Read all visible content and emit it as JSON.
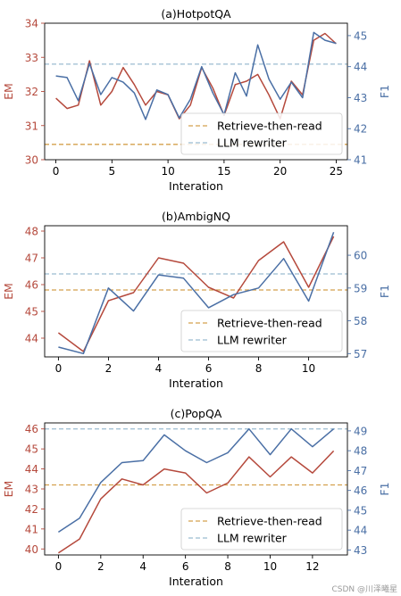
{
  "watermark": "CSDN @川泽曦星",
  "colors": {
    "em": "#b5493c",
    "f1": "#4a6fa5",
    "rtr_baseline": "#d4a04d",
    "llm_baseline": "#9bbcd0",
    "axis": "#000000"
  },
  "chart_data": [
    {
      "type": "line",
      "title": "(a)HotpotQA",
      "xlabel": "Interation",
      "ylabel_left": "EM",
      "ylabel_right": "F1",
      "x": [
        0,
        1,
        2,
        3,
        4,
        5,
        6,
        7,
        8,
        9,
        10,
        11,
        12,
        13,
        14,
        15,
        16,
        17,
        18,
        19,
        20,
        21,
        22,
        23,
        24,
        25
      ],
      "xlim": [
        -1,
        26
      ],
      "xticks": [
        0,
        5,
        10,
        15,
        20,
        25
      ],
      "ylim_left": [
        30,
        34
      ],
      "yticks_left": [
        30,
        31,
        32,
        33,
        34
      ],
      "ylim_right": [
        41,
        45.4
      ],
      "yticks_right": [
        41,
        42,
        43,
        44,
        45
      ],
      "series": [
        {
          "key": "em",
          "axis": "left",
          "values": [
            31.8,
            31.5,
            31.6,
            32.9,
            31.6,
            32.0,
            32.7,
            32.2,
            31.6,
            32.0,
            31.9,
            31.2,
            31.6,
            32.7,
            32.1,
            31.3,
            32.2,
            32.3,
            32.5,
            31.9,
            31.2,
            32.3,
            31.9,
            33.5,
            33.7,
            33.4
          ]
        },
        {
          "key": "f1",
          "axis": "left_alt",
          "values_right_axis": [
            43.7,
            43.65,
            42.9,
            44.1,
            43.1,
            43.65,
            43.5,
            43.15,
            42.3,
            43.25,
            43.1,
            42.35,
            42.95,
            44.0,
            43.15,
            42.45,
            43.8,
            43.05,
            44.7,
            43.6,
            42.95,
            43.5,
            43.0,
            45.1,
            44.85,
            44.75
          ]
        }
      ],
      "baselines": [
        {
          "label": "Retrieve-then-read",
          "axis": "left",
          "value": 30.45
        },
        {
          "label": "LLM rewriter",
          "axis": "left",
          "value": 32.8
        }
      ],
      "legend": "bottom-right"
    },
    {
      "type": "line",
      "title": "(b)AmbigNQ",
      "xlabel": "Interation",
      "ylabel_left": "EM",
      "ylabel_right": "F1",
      "x": [
        0,
        1,
        2,
        3,
        4,
        5,
        6,
        7,
        8,
        9,
        10,
        11
      ],
      "xlim": [
        -0.55,
        11.55
      ],
      "xticks": [
        0,
        2,
        4,
        6,
        8,
        10
      ],
      "ylim_left": [
        43.3,
        48.2
      ],
      "yticks_left": [
        44,
        45,
        46,
        47,
        48
      ],
      "ylim_right": [
        56.9,
        60.9
      ],
      "yticks_right": [
        57,
        58,
        59,
        60
      ],
      "series": [
        {
          "key": "em",
          "axis": "left",
          "values": [
            44.2,
            43.5,
            45.4,
            45.7,
            47.0,
            46.8,
            45.9,
            45.5,
            46.9,
            47.6,
            45.9,
            47.8
          ]
        },
        {
          "key": "f1",
          "axis": "right",
          "values_right_axis": [
            57.2,
            57.0,
            59.0,
            58.3,
            59.4,
            59.3,
            58.4,
            58.8,
            59.0,
            59.9,
            58.6,
            60.7
          ]
        }
      ],
      "baselines": [
        {
          "label": "Retrieve-then-read",
          "axis": "left",
          "value": 45.8
        },
        {
          "label": "LLM rewriter",
          "axis": "left",
          "value": 46.4
        }
      ],
      "legend": "bottom-right"
    },
    {
      "type": "line",
      "title": "(c)PopQA",
      "xlabel": "Interation",
      "ylabel_left": "EM",
      "ylabel_right": "F1",
      "x": [
        0,
        1,
        2,
        3,
        4,
        5,
        6,
        7,
        8,
        9,
        10,
        11,
        12,
        13
      ],
      "xlim": [
        -0.65,
        13.65
      ],
      "xticks": [
        0,
        2,
        4,
        6,
        8,
        10,
        12
      ],
      "ylim_left": [
        39.7,
        46.3
      ],
      "yticks_left": [
        40,
        41,
        42,
        43,
        44,
        45,
        46
      ],
      "ylim_right": [
        42.75,
        49.4
      ],
      "yticks_right": [
        43,
        44,
        45,
        46,
        47,
        48,
        49
      ],
      "series": [
        {
          "key": "em",
          "axis": "left",
          "values": [
            39.8,
            40.5,
            42.5,
            43.5,
            43.2,
            44.0,
            43.8,
            42.8,
            43.3,
            44.6,
            43.6,
            44.6,
            43.8,
            44.9
          ]
        },
        {
          "key": "f1",
          "axis": "right",
          "values_right_axis": [
            43.9,
            44.6,
            46.4,
            47.4,
            47.5,
            48.8,
            48.0,
            47.4,
            47.9,
            49.1,
            47.8,
            49.1,
            48.2,
            49.1
          ]
        }
      ],
      "baselines": [
        {
          "label": "Retrieve-then-read",
          "axis": "left",
          "value": 43.2
        },
        {
          "label": "LLM rewriter",
          "axis": "left",
          "value": 46.0
        }
      ],
      "legend": "bottom-right"
    }
  ]
}
